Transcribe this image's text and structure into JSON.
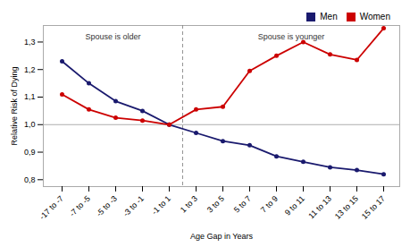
{
  "chart_data": {
    "type": "line",
    "xlabel": "Age Gap in Years",
    "ylabel": "Relative Risk of Dying",
    "categories": [
      "-17 to -7",
      "-7 to -5",
      "-5 to -3",
      "-3 to -1",
      "-1 to 1",
      "1 to 3",
      "3 to 5",
      "5 to 7",
      "7 to 9",
      "9 to 11",
      "11 to 13",
      "13 to 15",
      "15 to 17"
    ],
    "series": [
      {
        "name": "Men",
        "color": "#1a1a6e",
        "marker": "circle",
        "values": [
          1.23,
          1.15,
          1.085,
          1.05,
          1.0,
          0.97,
          0.94,
          0.925,
          0.885,
          0.865,
          0.845,
          0.835,
          0.82
        ]
      },
      {
        "name": "Women",
        "color": "#cc0000",
        "marker": "circle",
        "values": [
          1.11,
          1.055,
          1.025,
          1.015,
          1.0,
          1.055,
          1.065,
          1.195,
          1.25,
          1.3,
          1.255,
          1.235,
          1.35
        ]
      }
    ],
    "ylim": [
      0.775,
      1.36
    ],
    "yticks": [
      {
        "value": 0.8,
        "label": "0,8"
      },
      {
        "value": 0.9,
        "label": "0,9"
      },
      {
        "value": 1.0,
        "label": "1,0"
      },
      {
        "value": 1.1,
        "label": "1,1"
      },
      {
        "value": 1.2,
        "label": "1,2"
      },
      {
        "value": 1.3,
        "label": "1,3"
      }
    ],
    "annotations": [
      "Spouse is older",
      "Spouse is younger"
    ],
    "legend": "upper right",
    "grid": false
  }
}
